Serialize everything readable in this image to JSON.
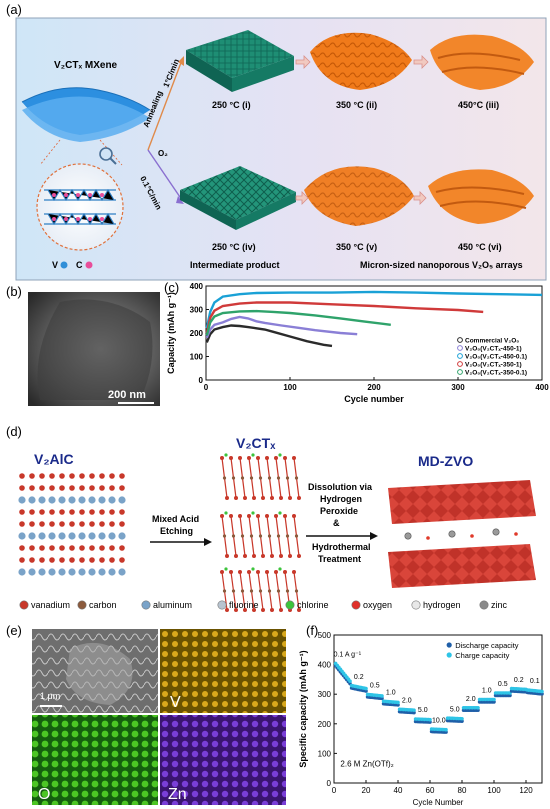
{
  "panel_a": {
    "label": "(a)",
    "mxene_title": "V₂CTₓ MXene",
    "route_top_annealing": "Annealing",
    "route_top_rate": "1°C/min",
    "route_o2": "O₂",
    "route_bottom_rate": "0.1°C/min",
    "top_row_labels": [
      "250 °C (i)",
      "350 °C (ii)",
      "450°C (iii)"
    ],
    "bottom_row_labels": [
      "250 °C (iv)",
      "350 °C (v)",
      "450 °C (vi)"
    ],
    "caption_left": "Intermediate product",
    "caption_right": "Micron-sized nanoporous V₂O₅ arrays",
    "legend_v": "V",
    "legend_c": "C"
  },
  "panel_b": {
    "label": "(b)",
    "scale_bar": "200 nm"
  },
  "panel_c": {
    "label": "(c)",
    "chart_data": {
      "type": "line",
      "xlabel": "Cycle number",
      "ylabel": "Capacity (mAh g⁻¹)",
      "xlim": [
        0,
        400
      ],
      "ylim": [
        0,
        400
      ],
      "xticks": [
        0,
        100,
        200,
        300,
        400
      ],
      "yticks": [
        0,
        100,
        200,
        300,
        400
      ],
      "legend_position": "bottom-right",
      "series": [
        {
          "name": "Commercial V₂O₅",
          "color": "#2b2b2b",
          "points": [
            [
              1,
              160
            ],
            [
              5,
              195
            ],
            [
              10,
              215
            ],
            [
              20,
              225
            ],
            [
              30,
              232
            ],
            [
              40,
              230
            ],
            [
              50,
              225
            ],
            [
              60,
              220
            ],
            [
              70,
              215
            ],
            [
              80,
              205
            ],
            [
              100,
              185
            ],
            [
              120,
              165
            ],
            [
              140,
              150
            ],
            [
              150,
              145
            ]
          ]
        },
        {
          "name": "V₂O₅(V₂CTₓ-450-1)",
          "color": "#8a7fd6",
          "points": [
            [
              1,
              180
            ],
            [
              5,
              215
            ],
            [
              10,
              235
            ],
            [
              20,
              245
            ],
            [
              30,
              260
            ],
            [
              40,
              268
            ],
            [
              50,
              262
            ],
            [
              60,
              250
            ],
            [
              70,
              243
            ],
            [
              90,
              232
            ],
            [
              110,
              222
            ],
            [
              130,
              212
            ],
            [
              160,
              200
            ],
            [
              180,
              195
            ]
          ]
        },
        {
          "name": "V₂O₅(V₂CTₓ-450-0.1)",
          "color": "#1aa1d6",
          "points": [
            [
              1,
              220
            ],
            [
              5,
              290
            ],
            [
              10,
              330
            ],
            [
              20,
              355
            ],
            [
              40,
              365
            ],
            [
              60,
              370
            ],
            [
              100,
              372
            ],
            [
              150,
              372
            ],
            [
              200,
              375
            ],
            [
              250,
              372
            ],
            [
              300,
              368
            ],
            [
              350,
              365
            ],
            [
              400,
              362
            ]
          ]
        },
        {
          "name": "V₂O₅(V₂CTₓ-350-1)",
          "color": "#d03a3a",
          "points": [
            [
              1,
              200
            ],
            [
              5,
              265
            ],
            [
              10,
              295
            ],
            [
              20,
              315
            ],
            [
              40,
              325
            ],
            [
              60,
              330
            ],
            [
              100,
              330
            ],
            [
              150,
              322
            ],
            [
              200,
              315
            ],
            [
              250,
              305
            ],
            [
              300,
              298
            ],
            [
              330,
              290
            ]
          ]
        },
        {
          "name": "V₂O₅(V₂CTₓ-350-0.1)",
          "color": "#2fa36b",
          "points": [
            [
              1,
              190
            ],
            [
              5,
              245
            ],
            [
              10,
              270
            ],
            [
              20,
              285
            ],
            [
              40,
              292
            ],
            [
              60,
              293
            ],
            [
              80,
              290
            ],
            [
              100,
              285
            ],
            [
              130,
              275
            ],
            [
              160,
              262
            ],
            [
              190,
              248
            ],
            [
              220,
              235
            ]
          ]
        }
      ]
    }
  },
  "panel_d": {
    "label": "(d)",
    "title_left": "V₂AlC",
    "title_mid": "V₂CTₓ",
    "title_right": "MD-ZVO",
    "arrow1_text": [
      "Mixed Acid",
      "Etching"
    ],
    "arrow2_text": [
      "Dissolution via",
      "Hydrogen",
      "Peroxide",
      "&",
      "Hydrothermal",
      "Treatment"
    ],
    "legend": [
      {
        "name": "vanadium",
        "color": "#c8382a"
      },
      {
        "name": "carbon",
        "color": "#8b5a3c"
      },
      {
        "name": "aluminum",
        "color": "#7aa3c8"
      },
      {
        "name": "fluorine",
        "color": "#b8c4d0"
      },
      {
        "name": "chlorine",
        "color": "#3cc43c"
      },
      {
        "name": "oxygen",
        "color": "#e0302a"
      },
      {
        "name": "hydrogen",
        "color": "#e8e8e8"
      },
      {
        "name": "zinc",
        "color": "#8a8a8a"
      }
    ]
  },
  "panel_e": {
    "label": "(e)",
    "scale_bar": "1 μm",
    "maps": [
      "V",
      "O",
      "Zn"
    ]
  },
  "panel_f": {
    "label": "(f)",
    "chart_data": {
      "type": "scatter",
      "xlabel": "Cycle Number",
      "ylabel": "Specific capacity (mAh g⁻¹)",
      "xlim": [
        0,
        130
      ],
      "ylim": [
        0,
        500
      ],
      "xticks": [
        0,
        20,
        40,
        60,
        80,
        100,
        120
      ],
      "yticks": [
        0,
        100,
        200,
        300,
        400,
        500
      ],
      "annotation": "2.6 M Zn(OTf)₂",
      "legend_position": "top-right",
      "series": [
        {
          "name": "Discharge capacity",
          "color": "#1f5fa8"
        },
        {
          "name": "Charge capacity",
          "color": "#2ec4e6"
        }
      ],
      "rate_steps": [
        {
          "rate": "0.1 A g⁻¹",
          "x_start": 1,
          "x_end": 10,
          "y_start": 400,
          "y_end": 340
        },
        {
          "rate": "0.2",
          "x_start": 11,
          "x_end": 20,
          "y_start": 325,
          "y_end": 315
        },
        {
          "rate": "0.5",
          "x_start": 21,
          "x_end": 30,
          "y_start": 295,
          "y_end": 290
        },
        {
          "rate": "1.0",
          "x_start": 31,
          "x_end": 40,
          "y_start": 272,
          "y_end": 268
        },
        {
          "rate": "2.0",
          "x_start": 41,
          "x_end": 50,
          "y_start": 245,
          "y_end": 242
        },
        {
          "rate": "5.0",
          "x_start": 51,
          "x_end": 60,
          "y_start": 212,
          "y_end": 210
        },
        {
          "rate": "10.0",
          "x_start": 61,
          "x_end": 70,
          "y_start": 178,
          "y_end": 176
        },
        {
          "rate": "5.0",
          "x_start": 71,
          "x_end": 80,
          "y_start": 215,
          "y_end": 213
        },
        {
          "rate": "2.0",
          "x_start": 81,
          "x_end": 90,
          "y_start": 250,
          "y_end": 250
        },
        {
          "rate": "1.0",
          "x_start": 91,
          "x_end": 100,
          "y_start": 278,
          "y_end": 278
        },
        {
          "rate": "0.5",
          "x_start": 101,
          "x_end": 110,
          "y_start": 300,
          "y_end": 300
        },
        {
          "rate": "0.2",
          "x_start": 111,
          "x_end": 120,
          "y_start": 315,
          "y_end": 312
        },
        {
          "rate": "0.1",
          "x_start": 121,
          "x_end": 130,
          "y_start": 310,
          "y_end": 305
        }
      ]
    }
  }
}
